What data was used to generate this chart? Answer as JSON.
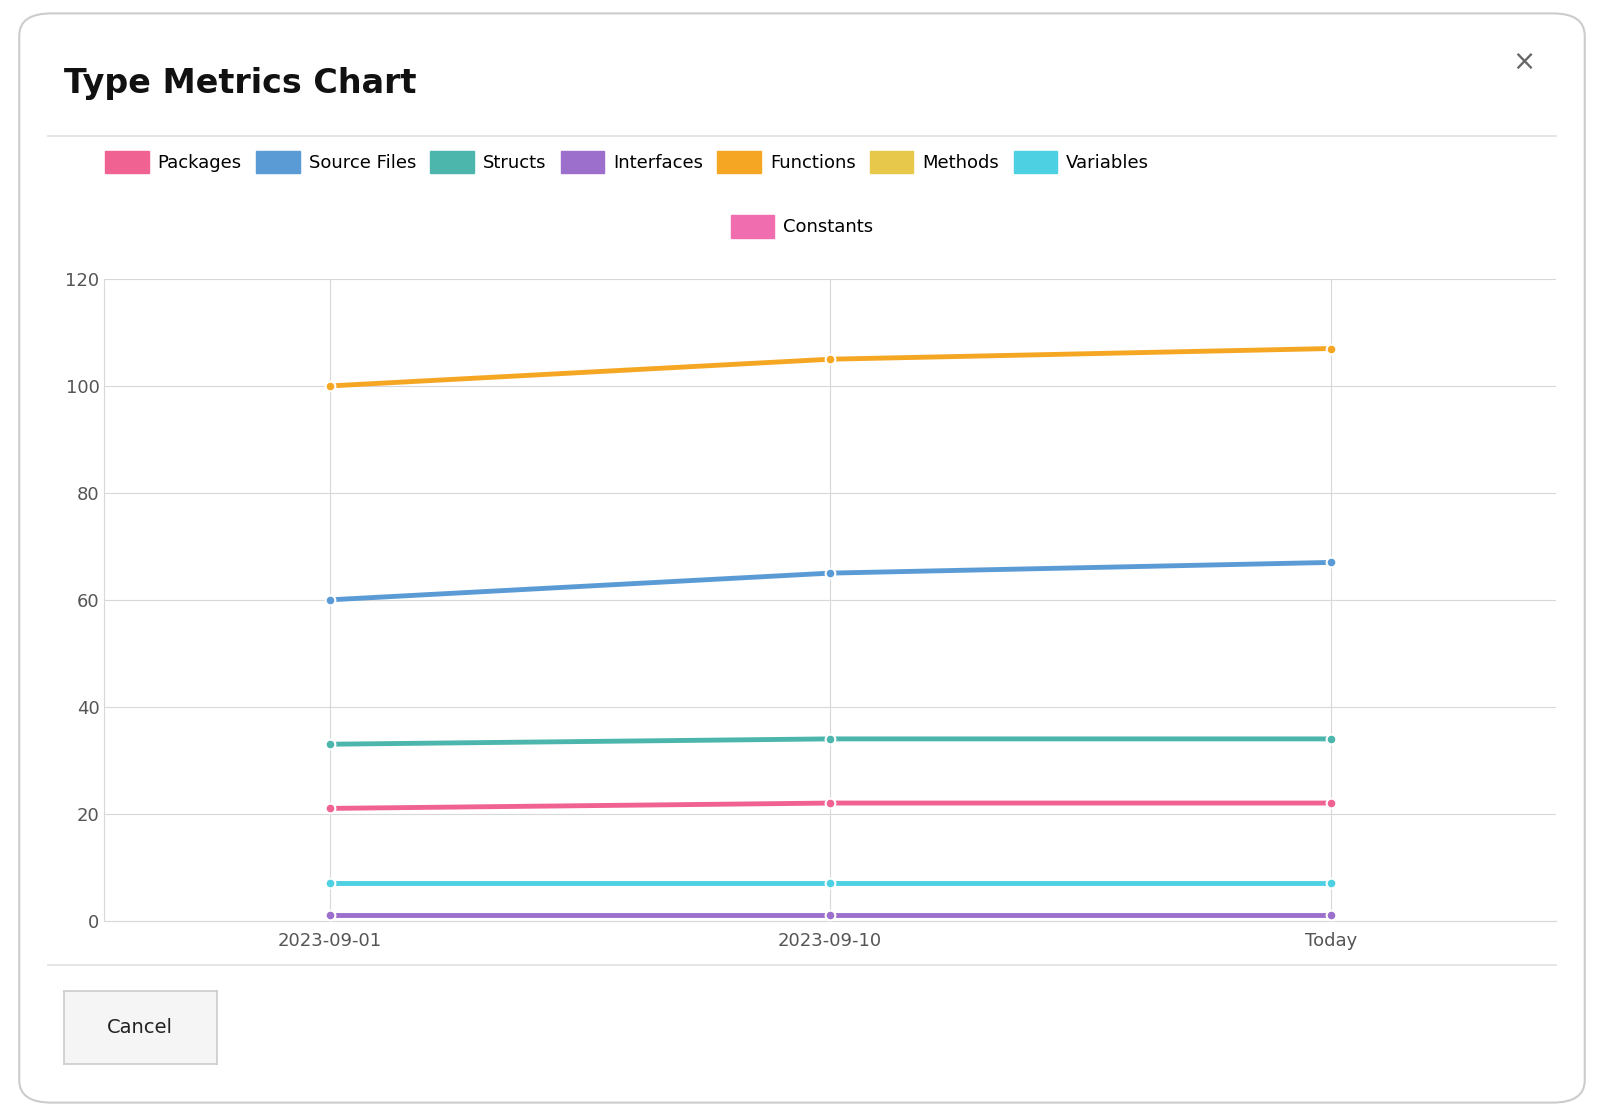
{
  "title": "Type Metrics Chart",
  "x_labels": [
    "2023-09-01",
    "2023-09-10",
    "Today"
  ],
  "x_positions": [
    1,
    2,
    3
  ],
  "series": [
    {
      "name": "Packages",
      "color": "#f06292",
      "values": [
        21,
        22,
        22
      ]
    },
    {
      "name": "Source Files",
      "color": "#5b9bd5",
      "values": [
        60,
        65,
        67
      ]
    },
    {
      "name": "Structs",
      "color": "#4db6ac",
      "values": [
        33,
        34,
        34
      ]
    },
    {
      "name": "Interfaces",
      "color": "#9c6fcc",
      "values": [
        1,
        1,
        1
      ]
    },
    {
      "name": "Functions",
      "color": "#f5a623",
      "values": [
        100,
        105,
        107
      ]
    },
    {
      "name": "Methods",
      "color": "#e8c84a",
      "values": [
        null,
        null,
        null
      ]
    },
    {
      "name": "Variables",
      "color": "#4dd0e1",
      "values": [
        7,
        7,
        7
      ]
    },
    {
      "name": "Constants",
      "color": "#f06eb0",
      "values": [
        null,
        null,
        null
      ]
    }
  ],
  "ylim": [
    0,
    120
  ],
  "yticks": [
    0,
    20,
    40,
    60,
    80,
    100,
    120
  ],
  "background_color": "#ffffff",
  "plot_bg_color": "#ffffff",
  "grid_color": "#d8d8d8",
  "title_fontsize": 24,
  "legend_fontsize": 13,
  "tick_fontsize": 13,
  "line_width": 3.5,
  "marker_size": 7,
  "close_button": "×",
  "cancel_label": "Cancel",
  "dialog_border_color": "#cccccc",
  "separator_color": "#e0e0e0"
}
